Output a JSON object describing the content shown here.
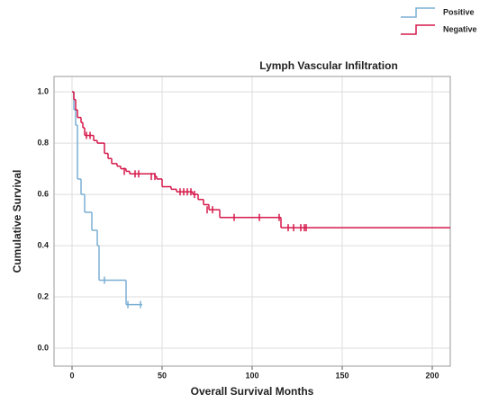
{
  "chart_data": {
    "type": "survival",
    "title": "Lymph Vascular Infiltration",
    "x_label": "Overall Survival Months",
    "y_label": "Cumulative Survival",
    "xlim": [
      -10,
      210
    ],
    "ylim": [
      -0.07,
      1.06
    ],
    "xticks": [
      0,
      50,
      100,
      150,
      200
    ],
    "yticks": [
      {
        "value": 0,
        "label": "0.0"
      },
      0.2,
      0.4,
      0.6,
      0.8,
      {
        "value": 1,
        "label": "1.0"
      }
    ],
    "grid": true,
    "legend": "top-right",
    "series": [
      {
        "name": "Positive",
        "color": "#7bafd4",
        "x": [
          0,
          1,
          2,
          3,
          5,
          7,
          11,
          14,
          15,
          30,
          39
        ],
        "values": [
          1,
          0.93,
          0.87,
          0.66,
          0.6,
          0.53,
          0.46,
          0.4,
          0.265,
          0.17,
          0.17
        ],
        "censor_x": [
          18,
          31,
          38
        ],
        "censor_values": [
          0.265,
          0.17,
          0.17
        ]
      },
      {
        "name": "Negative",
        "color": "#d5194b",
        "x": [
          0,
          1,
          2,
          3,
          5,
          6,
          7,
          12,
          14,
          18,
          20,
          22,
          25,
          27,
          30,
          32,
          46,
          47,
          50,
          55,
          58,
          67,
          70,
          73,
          76,
          82,
          116,
          210
        ],
        "values": [
          1,
          0.97,
          0.93,
          0.9,
          0.88,
          0.86,
          0.83,
          0.81,
          0.8,
          0.76,
          0.74,
          0.72,
          0.71,
          0.7,
          0.69,
          0.68,
          0.67,
          0.66,
          0.63,
          0.62,
          0.61,
          0.6,
          0.58,
          0.56,
          0.54,
          0.51,
          0.47,
          0.47
        ],
        "censor_x": [
          8,
          10,
          29,
          35,
          37,
          44,
          46,
          60,
          62,
          64,
          66,
          68,
          75,
          78,
          90,
          104,
          115,
          120,
          123,
          127,
          129,
          130
        ],
        "censor_values": [
          0.83,
          0.83,
          0.69,
          0.68,
          0.68,
          0.67,
          0.67,
          0.61,
          0.61,
          0.61,
          0.61,
          0.6,
          0.54,
          0.54,
          0.51,
          0.51,
          0.51,
          0.47,
          0.47,
          0.47,
          0.47,
          0.47
        ]
      }
    ]
  }
}
